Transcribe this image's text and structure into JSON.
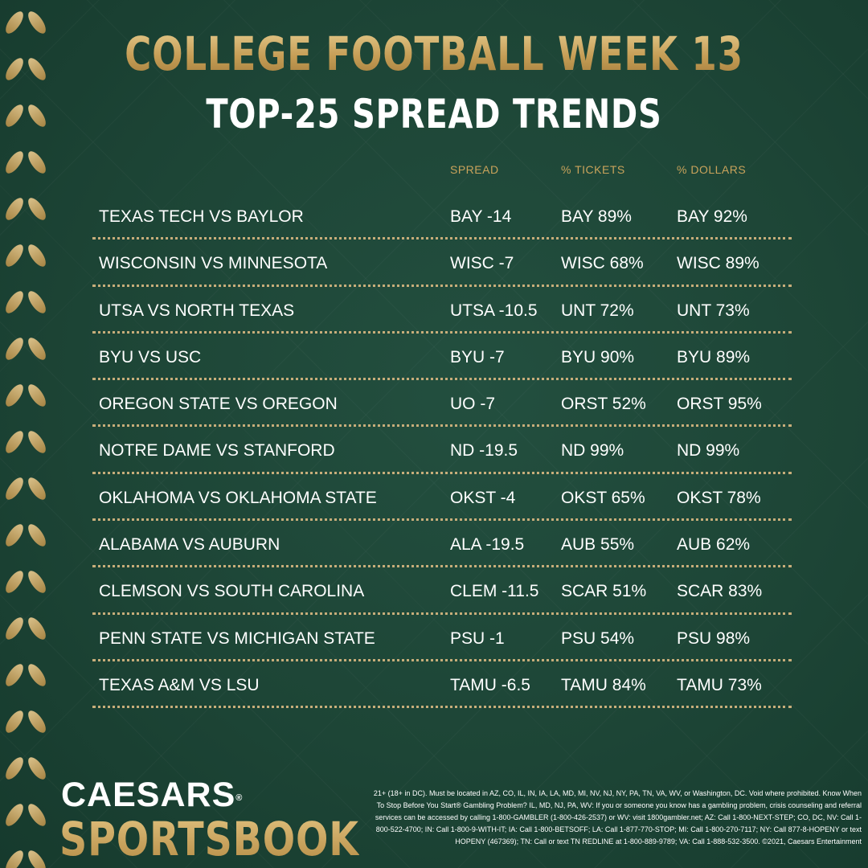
{
  "header": {
    "title": "COLLEGE FOOTBALL WEEK 13",
    "subtitle": "TOP-25 SPREAD TRENDS"
  },
  "columns": {
    "spread": "SPREAD",
    "tickets": "% TICKETS",
    "dollars": "% DOLLARS"
  },
  "rows": [
    {
      "game": "TEXAS TECH VS BAYLOR",
      "spread": "BAY -14",
      "tickets": "BAY 89%",
      "dollars": "BAY 92%"
    },
    {
      "game": "WISCONSIN VS MINNESOTA",
      "spread": "WISC -7",
      "tickets": "WISC 68%",
      "dollars": "WISC 89%"
    },
    {
      "game": "UTSA VS NORTH TEXAS",
      "spread": "UTSA -10.5",
      "tickets": "UNT 72%",
      "dollars": "UNT 73%"
    },
    {
      "game": "BYU VS USC",
      "spread": "BYU -7",
      "tickets": "BYU 90%",
      "dollars": "BYU 89%"
    },
    {
      "game": "OREGON STATE VS OREGON",
      "spread": "UO -7",
      "tickets": "ORST 52%",
      "dollars": "ORST 95%"
    },
    {
      "game": "NOTRE DAME VS STANFORD",
      "spread": "ND -19.5",
      "tickets": "ND 99%",
      "dollars": "ND 99%"
    },
    {
      "game": "OKLAHOMA VS OKLAHOMA STATE",
      "spread": "OKST -4",
      "tickets": "OKST 65%",
      "dollars": "OKST 78%"
    },
    {
      "game": "ALABAMA VS AUBURN",
      "spread": "ALA -19.5",
      "tickets": "AUB 55%",
      "dollars": "AUB 62%"
    },
    {
      "game": "CLEMSON VS SOUTH CAROLINA",
      "spread": "CLEM -11.5",
      "tickets": "SCAR 51%",
      "dollars": "SCAR 83%"
    },
    {
      "game": "PENN STATE VS MICHIGAN STATE",
      "spread": "PSU -1",
      "tickets": "PSU 54%",
      "dollars": "PSU 98%"
    },
    {
      "game": "TEXAS A&M VS LSU",
      "spread": "TAMU -6.5",
      "tickets": "TAMU 84%",
      "dollars": "TAMU 73%"
    }
  ],
  "brand": {
    "line1": "CAESARS",
    "registered": "®",
    "line2": "SPORTSBOOK"
  },
  "disclaimer": "21+ (18+ in DC). Must be located in AZ, CO, IL, IN, IA, LA, MD, MI, NV, NJ, NY, PA, TN, VA, WV, or Washington, DC. Void where prohibited. Know When To Stop Before You Start® Gambling Problem? IL, MD, NJ, PA, WV: If you or someone you know has a gambling problem, crisis counseling and referral services can be accessed by calling 1-800-GAMBLER (1-800-426-2537) or WV: visit 1800gambler.net; AZ: Call 1-800-NEXT-STEP; CO, DC, NV: Call 1-800-522-4700; IN: Call 1-800-9-WITH-IT; IA: Call 1-800-BETSOFF; LA: Call 1-877-770-STOP; MI: Call 1-800-270-7117; NY: Call 877-8-HOPENY or text HOPENY (467369); TN: Call or text TN REDLINE at 1-800-889-9789; VA: Call 1-888-532-3500. ©2021, Caesars Entertainment",
  "colors": {
    "background": "#1d4536",
    "gold": "#c9a35b",
    "text": "#ffffff"
  },
  "icons": [
    "laurel-vine-icon"
  ]
}
